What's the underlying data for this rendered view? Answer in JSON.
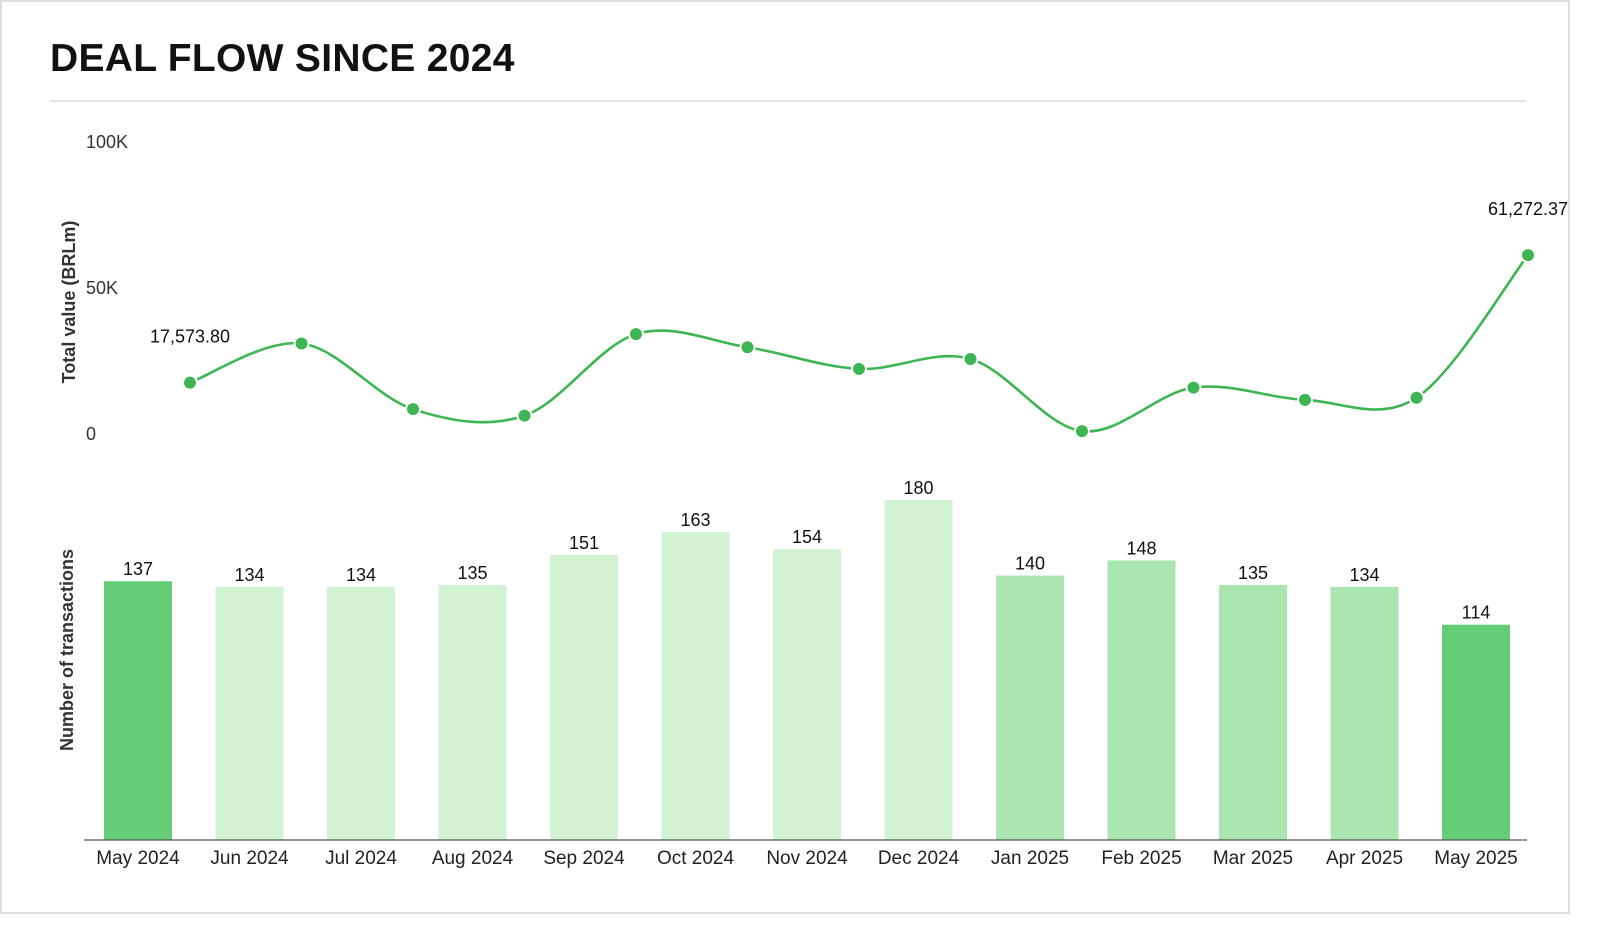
{
  "title": "DEAL FLOW SINCE 2024",
  "chart_data": [
    {
      "type": "line",
      "ylabel": "Total value (BRLm)",
      "ylim": [
        0,
        100000
      ],
      "yticks": [
        {
          "value": 0,
          "label": "0"
        },
        {
          "value": 50000,
          "label": "50K"
        },
        {
          "value": 100000,
          "label": "100K"
        }
      ],
      "categories": [
        "May 2024",
        "Jun 2024",
        "Jul 2024",
        "Aug 2024",
        "Sep 2024",
        "Oct 2024",
        "Nov 2024",
        "Dec 2024",
        "Jan 2025",
        "Feb 2025",
        "Mar 2025",
        "Apr 2025",
        "May 2025"
      ],
      "values": [
        17573.8,
        31000,
        8500,
        6300,
        34200,
        29700,
        22300,
        25700,
        1000,
        15900,
        11700,
        12400,
        61272.37
      ],
      "labels": [
        {
          "index": 0,
          "text": "17,573.80"
        },
        {
          "index": 12,
          "text": "61,272.37"
        }
      ],
      "color": "#3db553",
      "grid": false
    },
    {
      "type": "bar",
      "ylabel": "Number of transactions",
      "categories": [
        "May 2024",
        "Jun 2024",
        "Jul 2024",
        "Aug 2024",
        "Sep 2024",
        "Oct 2024",
        "Nov 2024",
        "Dec 2024",
        "Jan 2025",
        "Feb 2025",
        "Mar 2025",
        "Apr 2025",
        "May 2025"
      ],
      "values": [
        137,
        134,
        134,
        135,
        151,
        163,
        154,
        180,
        140,
        148,
        135,
        134,
        114
      ],
      "value_labels": [
        "137",
        "134",
        "134",
        "135",
        "151",
        "163",
        "154",
        "180",
        "140",
        "148",
        "135",
        "134",
        "114"
      ],
      "colors": [
        "#66cd77",
        "#d2f2d4",
        "#d2f2d4",
        "#d2f2d4",
        "#d2f2d4",
        "#d2f2d4",
        "#d2f2d4",
        "#d2f2d4",
        "#a9e6b0",
        "#a9e6b0",
        "#a9e6b0",
        "#a9e6b0",
        "#66cd77"
      ],
      "ylim": [
        0,
        180
      ],
      "grid": false
    }
  ]
}
